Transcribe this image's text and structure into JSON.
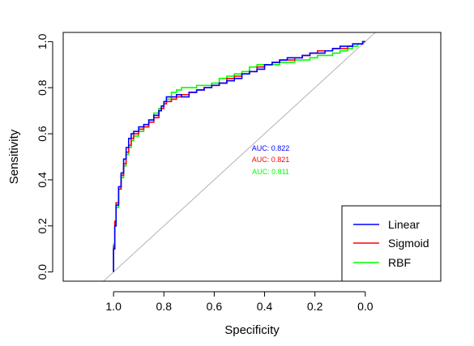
{
  "chart_data": {
    "type": "line",
    "xlabel": "Specificity",
    "ylabel": "Sensitivity",
    "x_reversed": true,
    "xlim": [
      1.2,
      -0.3
    ],
    "ylim": [
      -0.04,
      1.04
    ],
    "x_ticks": [
      1.0,
      0.8,
      0.6,
      0.4,
      0.2,
      0.0
    ],
    "x_tick_labels": [
      "1.0",
      "0.8",
      "0.6",
      "0.4",
      "0.2",
      "0.0"
    ],
    "y_ticks": [
      0.0,
      0.2,
      0.4,
      0.6,
      0.8,
      1.0
    ],
    "y_tick_labels": [
      "0.0",
      "0.2",
      "0.4",
      "0.6",
      "0.8",
      "1.0"
    ],
    "grid": false,
    "legend_position": "bottom-right",
    "reference_line": {
      "color": "#b3b3b3",
      "points": [
        [
          1.0,
          0.0
        ],
        [
          0.0,
          1.0
        ]
      ]
    },
    "series": [
      {
        "name": "Linear",
        "color": "#0000ff",
        "auc_label": "AUC: 0.822",
        "x": [
          1.0,
          1.0,
          0.995,
          0.99,
          0.98,
          0.97,
          0.96,
          0.95,
          0.94,
          0.93,
          0.92,
          0.9,
          0.88,
          0.86,
          0.84,
          0.82,
          0.81,
          0.8,
          0.79,
          0.77,
          0.75,
          0.73,
          0.7,
          0.67,
          0.64,
          0.61,
          0.58,
          0.55,
          0.52,
          0.49,
          0.46,
          0.43,
          0.4,
          0.37,
          0.34,
          0.31,
          0.28,
          0.25,
          0.22,
          0.19,
          0.16,
          0.13,
          0.1,
          0.07,
          0.05,
          0.03,
          0.01,
          0.0
        ],
        "y": [
          0.0,
          0.1,
          0.2,
          0.29,
          0.37,
          0.43,
          0.49,
          0.54,
          0.58,
          0.6,
          0.61,
          0.63,
          0.64,
          0.66,
          0.68,
          0.7,
          0.72,
          0.74,
          0.76,
          0.76,
          0.77,
          0.76,
          0.78,
          0.79,
          0.8,
          0.81,
          0.82,
          0.83,
          0.84,
          0.86,
          0.87,
          0.88,
          0.9,
          0.91,
          0.92,
          0.93,
          0.93,
          0.94,
          0.95,
          0.95,
          0.96,
          0.97,
          0.98,
          0.98,
          0.99,
          0.99,
          1.0,
          1.0
        ]
      },
      {
        "name": "Sigmoid",
        "color": "#ff0000",
        "auc_label": "AUC: 0.821",
        "x": [
          1.0,
          1.0,
          0.995,
          0.99,
          0.98,
          0.97,
          0.96,
          0.95,
          0.94,
          0.93,
          0.92,
          0.9,
          0.88,
          0.86,
          0.84,
          0.82,
          0.81,
          0.8,
          0.79,
          0.77,
          0.75,
          0.73,
          0.7,
          0.67,
          0.64,
          0.61,
          0.58,
          0.55,
          0.52,
          0.49,
          0.46,
          0.43,
          0.4,
          0.37,
          0.34,
          0.31,
          0.28,
          0.25,
          0.22,
          0.19,
          0.16,
          0.13,
          0.1,
          0.07,
          0.05,
          0.03,
          0.01,
          0.0
        ],
        "y": [
          0.0,
          0.11,
          0.22,
          0.3,
          0.36,
          0.42,
          0.47,
          0.52,
          0.55,
          0.58,
          0.6,
          0.62,
          0.63,
          0.65,
          0.67,
          0.7,
          0.71,
          0.73,
          0.74,
          0.75,
          0.76,
          0.77,
          0.78,
          0.79,
          0.8,
          0.81,
          0.82,
          0.84,
          0.85,
          0.86,
          0.87,
          0.89,
          0.9,
          0.91,
          0.92,
          0.92,
          0.93,
          0.94,
          0.95,
          0.96,
          0.96,
          0.97,
          0.97,
          0.98,
          0.99,
          0.99,
          1.0,
          1.0
        ]
      },
      {
        "name": "RBF",
        "color": "#00ff00",
        "auc_label": "AUC: 0.811",
        "x": [
          1.0,
          1.0,
          0.995,
          0.99,
          0.98,
          0.97,
          0.96,
          0.95,
          0.94,
          0.93,
          0.92,
          0.9,
          0.88,
          0.86,
          0.84,
          0.82,
          0.81,
          0.8,
          0.79,
          0.77,
          0.75,
          0.73,
          0.7,
          0.67,
          0.64,
          0.61,
          0.58,
          0.55,
          0.52,
          0.49,
          0.46,
          0.43,
          0.4,
          0.37,
          0.34,
          0.31,
          0.28,
          0.25,
          0.22,
          0.19,
          0.16,
          0.13,
          0.1,
          0.07,
          0.05,
          0.03,
          0.01,
          0.0
        ],
        "y": [
          0.0,
          0.12,
          0.21,
          0.28,
          0.36,
          0.41,
          0.46,
          0.51,
          0.54,
          0.57,
          0.59,
          0.61,
          0.63,
          0.66,
          0.69,
          0.71,
          0.72,
          0.73,
          0.75,
          0.78,
          0.79,
          0.8,
          0.8,
          0.81,
          0.81,
          0.82,
          0.84,
          0.85,
          0.86,
          0.87,
          0.89,
          0.9,
          0.9,
          0.9,
          0.91,
          0.91,
          0.92,
          0.92,
          0.93,
          0.94,
          0.94,
          0.95,
          0.96,
          0.97,
          0.98,
          0.99,
          1.0,
          1.0
        ]
      }
    ]
  }
}
